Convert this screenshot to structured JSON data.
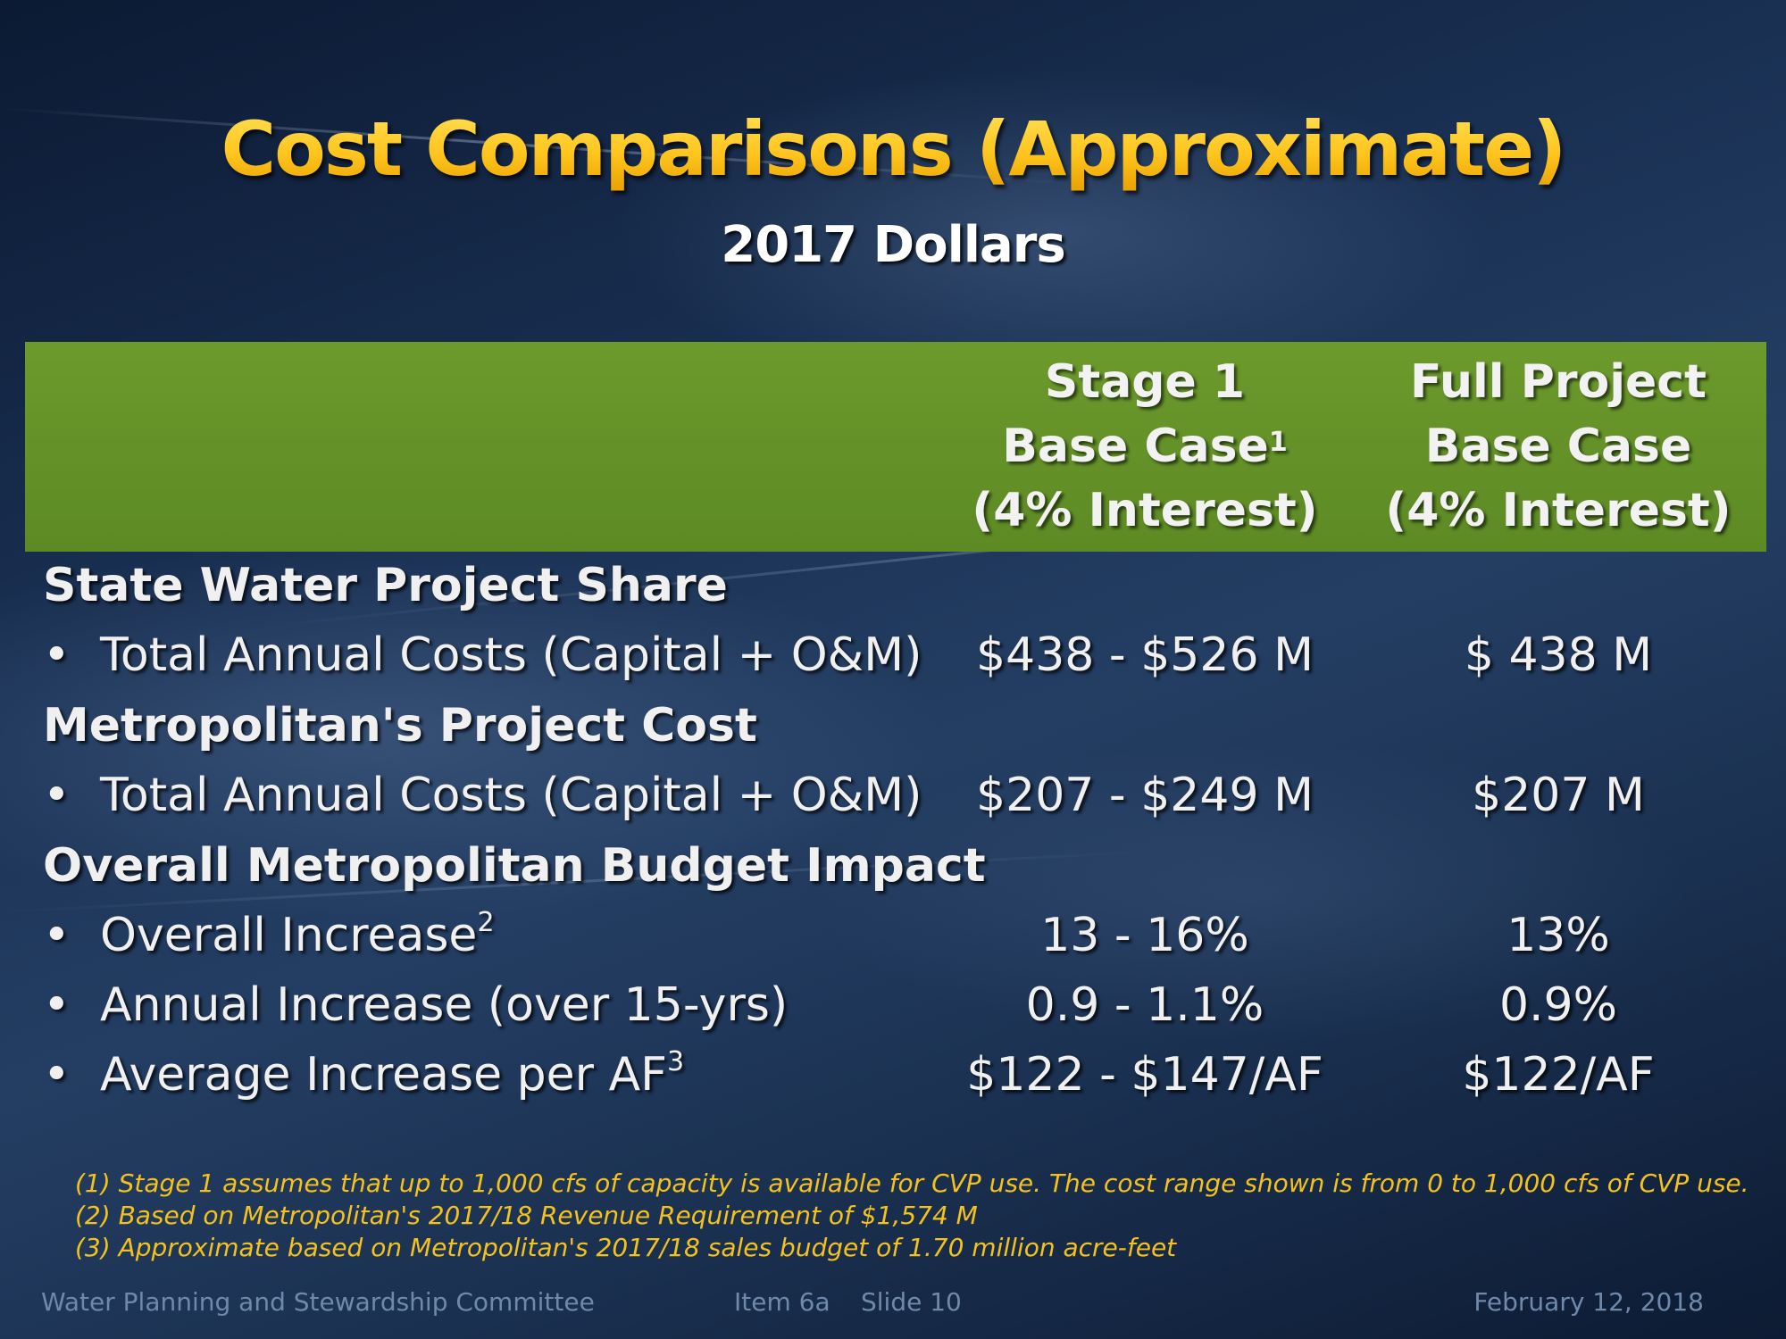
{
  "title": "Cost Comparisons (Approximate)",
  "subtitle": "2017 Dollars",
  "columns": [
    {
      "line1": "Stage 1",
      "line2": "Base Case",
      "line2_sup": "1",
      "line3": "(4% Interest)"
    },
    {
      "line1": "Full Project",
      "line2": "Base Case",
      "line2_sup": "",
      "line3": "(4% Interest)"
    }
  ],
  "rows": [
    {
      "type": "section",
      "label": "State Water Project Share"
    },
    {
      "type": "item",
      "bullet": "•",
      "label": "Total Annual Costs (Capital + O&M)",
      "sup": "",
      "stage1": "$438 - $526 M",
      "full": "$ 438 M"
    },
    {
      "type": "section",
      "label": "Metropolitan's Project Cost"
    },
    {
      "type": "item",
      "bullet": "•",
      "label": "Total Annual Costs  (Capital + O&M)",
      "sup": "",
      "stage1": "$207 - $249 M",
      "full": "$207 M"
    },
    {
      "type": "section",
      "label": "Overall Metropolitan Budget Impact"
    },
    {
      "type": "item",
      "bullet": "•",
      "label": "Overall Increase",
      "sup": "2",
      "stage1": "13 - 16%",
      "full": "13%"
    },
    {
      "type": "item",
      "bullet": "•",
      "label": "Annual Increase (over 15-yrs)",
      "sup": "",
      "stage1": "0.9 - 1.1%",
      "full": "0.9%"
    },
    {
      "type": "item",
      "bullet": "•",
      "label": "Average Increase per AF",
      "sup": "3",
      "stage1": "$122 - $147/AF",
      "full": "$122/AF"
    }
  ],
  "footnotes": [
    "(1) Stage 1 assumes that up to 1,000 cfs of capacity is available for CVP use. The cost range shown is from 0 to 1,000 cfs of CVP use.",
    "(2) Based on Metropolitan's 2017/18 Revenue Requirement of $1,574 M",
    "(3) Approximate based on Metropolitan's 2017/18 sales budget of 1.70 million acre-feet"
  ],
  "footer": {
    "committee": "Water Planning and Stewardship Committee",
    "item": "Item 6a",
    "slide": "Slide 10",
    "date": "February 12, 2018"
  },
  "colors": {
    "title_gold": "#ffc51e",
    "header_green": "#5d8a24",
    "footnote_gold": "#f5c21b",
    "footer_text": "#6f89ab"
  }
}
